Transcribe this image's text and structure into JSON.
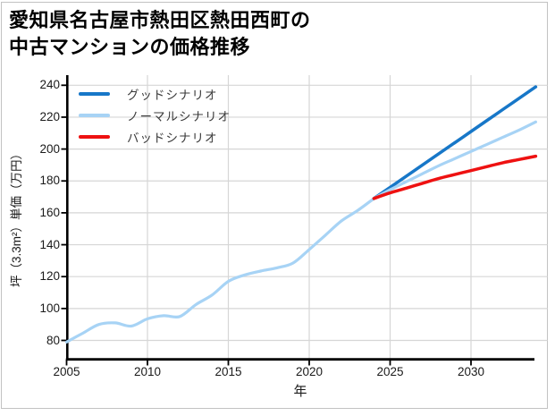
{
  "figure": {
    "title_line1": "愛知県名古屋市熱田区熱田西町の",
    "title_line2": "中古マンションの価格推移"
  },
  "colors": {
    "background": "#ffffff",
    "border": "#c2c2c2",
    "grid": "#d6d6d6",
    "axis": "#000000",
    "tick_text": "#1a1a1a",
    "legend_text": "#3a3a3a",
    "good_scenario": "#1777c8",
    "normal_scenario": "#a7d3f5",
    "bad_scenario": "#ee1111"
  },
  "chart_data": {
    "type": "line",
    "title": "愛知県名古屋市熱田区熱田西町の中古マンションの価格推移",
    "xlabel": "年",
    "ylabel": "坪（3.3m²）単価（万円）",
    "x_ticks": [
      2005,
      2010,
      2015,
      2020,
      2025,
      2030
    ],
    "y_ticks": [
      80,
      100,
      120,
      140,
      160,
      180,
      200,
      220,
      240
    ],
    "xlim": [
      2005,
      2034
    ],
    "ylim": [
      68,
      246
    ],
    "grid": true,
    "legend_position": "upper-left",
    "series": [
      {
        "name": "price-history",
        "label": "",
        "color": "#a7d3f5",
        "width": 3.2,
        "x": [
          2005,
          2006,
          2007,
          2008,
          2009,
          2010,
          2011,
          2012,
          2013,
          2014,
          2015,
          2016,
          2017,
          2018,
          2019,
          2020,
          2021,
          2022,
          2023,
          2024
        ],
        "values": [
          79,
          84.5,
          90,
          91,
          89,
          93.5,
          95.5,
          95,
          102.5,
          108.5,
          117,
          121,
          123.5,
          125.5,
          128.5,
          137,
          146,
          155,
          161.5,
          169
        ]
      },
      {
        "name": "good-scenario",
        "label": "グッドシナリオ",
        "color": "#1777c8",
        "width": 3.5,
        "x": [
          2024,
          2025,
          2026,
          2027,
          2028,
          2029,
          2030,
          2031,
          2032,
          2033,
          2034
        ],
        "values": [
          169,
          176,
          183,
          190,
          197,
          204,
          211,
          218,
          225,
          232,
          239
        ]
      },
      {
        "name": "normal-scenario",
        "label": "ノーマルシナリオ",
        "color": "#a7d3f5",
        "width": 3.2,
        "x": [
          2024,
          2025,
          2026,
          2027,
          2028,
          2029,
          2030,
          2031,
          2032,
          2033,
          2034
        ],
        "values": [
          169,
          174.5,
          179.5,
          184.5,
          189.5,
          194,
          198.5,
          203,
          207.5,
          212,
          217
        ]
      },
      {
        "name": "bad-scenario",
        "label": "バッドシナリオ",
        "color": "#ee1111",
        "width": 3.5,
        "x": [
          2024,
          2025,
          2026,
          2027,
          2028,
          2029,
          2030,
          2031,
          2032,
          2033,
          2034
        ],
        "values": [
          169,
          172.5,
          175.5,
          178.5,
          181.5,
          184,
          186.5,
          189,
          191.5,
          193.5,
          195.5
        ]
      }
    ]
  }
}
